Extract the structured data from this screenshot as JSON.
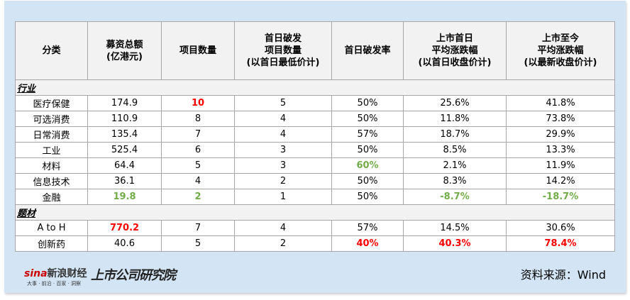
{
  "headers": [
    "分类",
    "募资总额\n(亿港元)",
    "项目数量",
    "首日破发\n项目数量\n(以首日最低价计)",
    "首日破发率",
    "上市首日\n平均涨跌幅\n(以首日收盘价计)",
    "上市至今\n平均涨跌幅\n(以最新收盘价计)"
  ],
  "sections": [
    {
      "title": "行业",
      "rows": [
        [
          "医疗保健",
          "174.9",
          "10",
          "5",
          "50%",
          "25.6%",
          "41.8%"
        ],
        [
          "可选消费",
          "110.9",
          "8",
          "4",
          "50%",
          "11.8%",
          "73.8%"
        ],
        [
          "日常消费",
          "135.4",
          "7",
          "4",
          "57%",
          "18.7%",
          "29.9%"
        ],
        [
          "工业",
          "525.4",
          "6",
          "3",
          "50%",
          "8.5%",
          "13.3%"
        ],
        [
          "材料",
          "64.4",
          "5",
          "3",
          "60%",
          "2.1%",
          "11.9%"
        ],
        [
          "信息技术",
          "36.1",
          "4",
          "2",
          "50%",
          "8.3%",
          "14.2%"
        ],
        [
          "金融",
          "19.8",
          "2",
          "1",
          "50%",
          "-8.7%",
          "-18.7%"
        ]
      ]
    },
    {
      "title": "题材",
      "rows": [
        [
          "A to H",
          "770.2",
          "7",
          "4",
          "57%",
          "14.5%",
          "30.6%"
        ],
        [
          "创新药",
          "40.6",
          "5",
          "2",
          "40%",
          "40.3%",
          "78.4%"
        ]
      ]
    }
  ],
  "highlights": {
    "red": "#ff0000",
    "green": "#70ad47"
  },
  "logos": {
    "sina": "sina新浪财经",
    "sina_sub": "大事 · 前沿 · 百家 · 洞察",
    "institute": "上市公司研究院"
  },
  "source": "资料来源：Wind"
}
